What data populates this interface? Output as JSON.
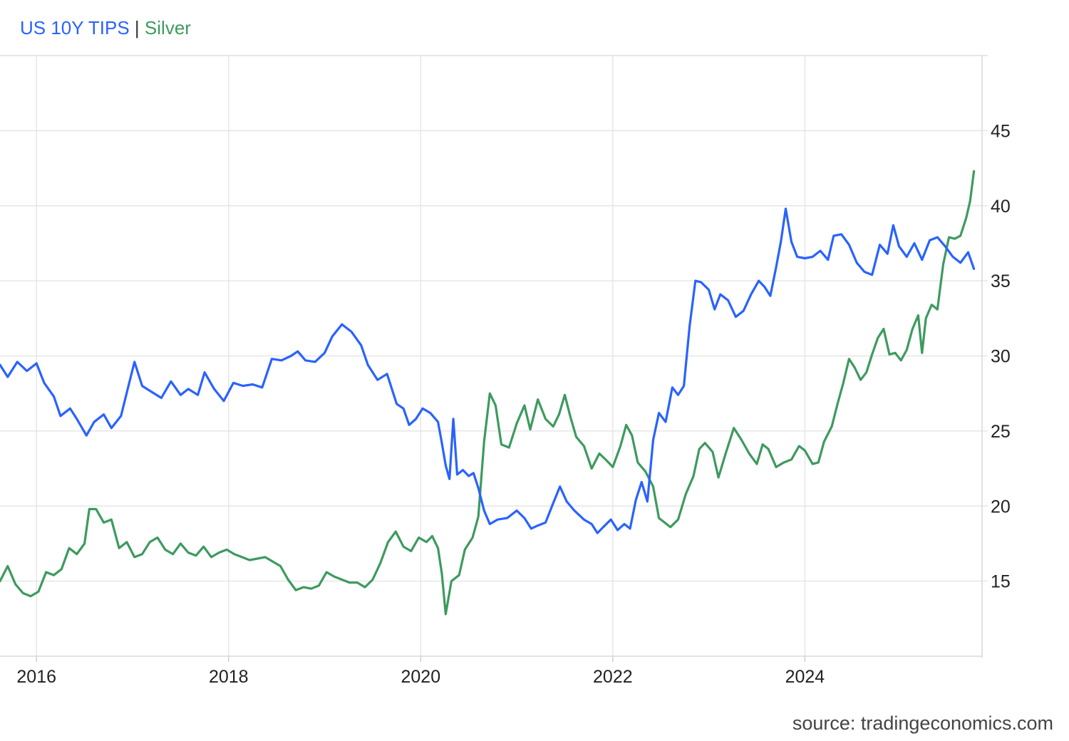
{
  "legend": {
    "tips_label": "US 10Y TIPS",
    "separator": "|",
    "silver_label": "Silver"
  },
  "source": "source: tradingeconomics.com",
  "colors": {
    "tips": "#2962ff",
    "silver": "#3d9a5f",
    "grid": "#e6e6e6"
  },
  "chart_data": {
    "type": "line",
    "title": "",
    "xlabel": "",
    "ylabel": "",
    "x_range": [
      2015.62,
      2025.8
    ],
    "ylim": [
      10,
      50
    ],
    "y_ticks": [
      15,
      20,
      25,
      30,
      35,
      40,
      45
    ],
    "x_ticks": [
      2016,
      2018,
      2020,
      2022,
      2024
    ],
    "x_tick_labels": [
      "2016",
      "2018",
      "2020",
      "2022",
      "2024"
    ],
    "grid": true,
    "y_axis_side": "right",
    "series": [
      {
        "name": "US 10Y TIPS",
        "color": "#2962ff",
        "points": [
          [
            2015.62,
            29.4
          ],
          [
            2015.7,
            28.6
          ],
          [
            2015.8,
            29.6
          ],
          [
            2015.9,
            29.0
          ],
          [
            2016.0,
            29.5
          ],
          [
            2016.08,
            28.2
          ],
          [
            2016.18,
            27.3
          ],
          [
            2016.25,
            26.0
          ],
          [
            2016.35,
            26.5
          ],
          [
            2016.42,
            25.8
          ],
          [
            2016.52,
            24.7
          ],
          [
            2016.6,
            25.6
          ],
          [
            2016.7,
            26.1
          ],
          [
            2016.78,
            25.2
          ],
          [
            2016.88,
            26.0
          ],
          [
            2016.95,
            27.8
          ],
          [
            2017.02,
            29.6
          ],
          [
            2017.1,
            28.0
          ],
          [
            2017.2,
            27.6
          ],
          [
            2017.3,
            27.2
          ],
          [
            2017.4,
            28.3
          ],
          [
            2017.5,
            27.4
          ],
          [
            2017.58,
            27.8
          ],
          [
            2017.68,
            27.4
          ],
          [
            2017.75,
            28.9
          ],
          [
            2017.85,
            27.8
          ],
          [
            2017.95,
            27.0
          ],
          [
            2018.05,
            28.2
          ],
          [
            2018.15,
            28.0
          ],
          [
            2018.25,
            28.1
          ],
          [
            2018.35,
            27.9
          ],
          [
            2018.45,
            29.8
          ],
          [
            2018.55,
            29.7
          ],
          [
            2018.65,
            30.0
          ],
          [
            2018.72,
            30.3
          ],
          [
            2018.8,
            29.7
          ],
          [
            2018.9,
            29.6
          ],
          [
            2019.0,
            30.2
          ],
          [
            2019.08,
            31.3
          ],
          [
            2019.18,
            32.1
          ],
          [
            2019.28,
            31.6
          ],
          [
            2019.38,
            30.7
          ],
          [
            2019.45,
            29.4
          ],
          [
            2019.55,
            28.4
          ],
          [
            2019.65,
            28.8
          ],
          [
            2019.75,
            26.8
          ],
          [
            2019.82,
            26.5
          ],
          [
            2019.88,
            25.4
          ],
          [
            2019.95,
            25.8
          ],
          [
            2020.02,
            26.5
          ],
          [
            2020.1,
            26.2
          ],
          [
            2020.18,
            25.6
          ],
          [
            2020.22,
            24.2
          ],
          [
            2020.26,
            22.7
          ],
          [
            2020.3,
            21.8
          ],
          [
            2020.34,
            25.8
          ],
          [
            2020.38,
            22.1
          ],
          [
            2020.44,
            22.4
          ],
          [
            2020.5,
            22.0
          ],
          [
            2020.55,
            22.2
          ],
          [
            2020.6,
            21.2
          ],
          [
            2020.66,
            19.7
          ],
          [
            2020.72,
            18.8
          ],
          [
            2020.8,
            19.1
          ],
          [
            2020.9,
            19.2
          ],
          [
            2021.0,
            19.7
          ],
          [
            2021.08,
            19.2
          ],
          [
            2021.15,
            18.5
          ],
          [
            2021.22,
            18.7
          ],
          [
            2021.3,
            18.9
          ],
          [
            2021.38,
            20.2
          ],
          [
            2021.45,
            21.3
          ],
          [
            2021.52,
            20.3
          ],
          [
            2021.6,
            19.7
          ],
          [
            2021.7,
            19.1
          ],
          [
            2021.78,
            18.8
          ],
          [
            2021.84,
            18.2
          ],
          [
            2021.9,
            18.6
          ],
          [
            2021.98,
            19.1
          ],
          [
            2022.05,
            18.4
          ],
          [
            2022.12,
            18.8
          ],
          [
            2022.18,
            18.5
          ],
          [
            2022.24,
            20.4
          ],
          [
            2022.3,
            21.6
          ],
          [
            2022.36,
            20.3
          ],
          [
            2022.42,
            24.4
          ],
          [
            2022.48,
            26.2
          ],
          [
            2022.55,
            25.6
          ],
          [
            2022.62,
            27.9
          ],
          [
            2022.68,
            27.4
          ],
          [
            2022.74,
            28.0
          ],
          [
            2022.8,
            32.0
          ],
          [
            2022.86,
            35.0
          ],
          [
            2022.92,
            34.9
          ],
          [
            2023.0,
            34.4
          ],
          [
            2023.06,
            33.1
          ],
          [
            2023.12,
            34.1
          ],
          [
            2023.2,
            33.7
          ],
          [
            2023.28,
            32.6
          ],
          [
            2023.36,
            33.0
          ],
          [
            2023.44,
            34.1
          ],
          [
            2023.52,
            35.0
          ],
          [
            2023.58,
            34.6
          ],
          [
            2023.64,
            34.0
          ],
          [
            2023.7,
            35.9
          ],
          [
            2023.75,
            37.6
          ],
          [
            2023.8,
            39.8
          ],
          [
            2023.86,
            37.6
          ],
          [
            2023.92,
            36.6
          ],
          [
            2024.0,
            36.5
          ],
          [
            2024.08,
            36.6
          ],
          [
            2024.16,
            37.0
          ],
          [
            2024.24,
            36.4
          ],
          [
            2024.3,
            38.0
          ],
          [
            2024.38,
            38.1
          ],
          [
            2024.46,
            37.4
          ],
          [
            2024.54,
            36.2
          ],
          [
            2024.62,
            35.6
          ],
          [
            2024.7,
            35.4
          ],
          [
            2024.78,
            37.4
          ],
          [
            2024.86,
            36.8
          ],
          [
            2024.92,
            38.7
          ],
          [
            2024.98,
            37.3
          ],
          [
            2025.06,
            36.6
          ],
          [
            2025.14,
            37.5
          ],
          [
            2025.22,
            36.4
          ],
          [
            2025.3,
            37.7
          ],
          [
            2025.38,
            37.9
          ],
          [
            2025.46,
            37.3
          ],
          [
            2025.54,
            36.6
          ],
          [
            2025.62,
            36.2
          ],
          [
            2025.7,
            36.9
          ],
          [
            2025.76,
            35.8
          ]
        ]
      },
      {
        "name": "Silver",
        "color": "#3d9a5f",
        "points": [
          [
            2015.62,
            15.0
          ],
          [
            2015.7,
            16.0
          ],
          [
            2015.78,
            14.8
          ],
          [
            2015.86,
            14.2
          ],
          [
            2015.94,
            14.0
          ],
          [
            2016.02,
            14.3
          ],
          [
            2016.1,
            15.6
          ],
          [
            2016.18,
            15.4
          ],
          [
            2016.26,
            15.8
          ],
          [
            2016.34,
            17.2
          ],
          [
            2016.42,
            16.8
          ],
          [
            2016.5,
            17.5
          ],
          [
            2016.55,
            19.8
          ],
          [
            2016.62,
            19.8
          ],
          [
            2016.7,
            18.9
          ],
          [
            2016.78,
            19.1
          ],
          [
            2016.86,
            17.2
          ],
          [
            2016.94,
            17.6
          ],
          [
            2017.02,
            16.6
          ],
          [
            2017.1,
            16.8
          ],
          [
            2017.18,
            17.6
          ],
          [
            2017.26,
            17.9
          ],
          [
            2017.34,
            17.1
          ],
          [
            2017.42,
            16.8
          ],
          [
            2017.5,
            17.5
          ],
          [
            2017.58,
            16.9
          ],
          [
            2017.66,
            16.7
          ],
          [
            2017.74,
            17.3
          ],
          [
            2017.82,
            16.6
          ],
          [
            2017.9,
            16.9
          ],
          [
            2017.98,
            17.1
          ],
          [
            2018.06,
            16.8
          ],
          [
            2018.14,
            16.6
          ],
          [
            2018.22,
            16.4
          ],
          [
            2018.3,
            16.5
          ],
          [
            2018.38,
            16.6
          ],
          [
            2018.46,
            16.3
          ],
          [
            2018.54,
            16.0
          ],
          [
            2018.62,
            15.1
          ],
          [
            2018.7,
            14.4
          ],
          [
            2018.78,
            14.6
          ],
          [
            2018.86,
            14.5
          ],
          [
            2018.94,
            14.7
          ],
          [
            2019.02,
            15.6
          ],
          [
            2019.1,
            15.3
          ],
          [
            2019.18,
            15.1
          ],
          [
            2019.26,
            14.9
          ],
          [
            2019.34,
            14.9
          ],
          [
            2019.42,
            14.6
          ],
          [
            2019.5,
            15.1
          ],
          [
            2019.58,
            16.2
          ],
          [
            2019.66,
            17.6
          ],
          [
            2019.74,
            18.3
          ],
          [
            2019.82,
            17.3
          ],
          [
            2019.9,
            17.0
          ],
          [
            2019.98,
            17.9
          ],
          [
            2020.06,
            17.6
          ],
          [
            2020.12,
            18.0
          ],
          [
            2020.18,
            17.2
          ],
          [
            2020.22,
            15.5
          ],
          [
            2020.26,
            12.8
          ],
          [
            2020.32,
            15.0
          ],
          [
            2020.4,
            15.4
          ],
          [
            2020.46,
            17.1
          ],
          [
            2020.54,
            17.9
          ],
          [
            2020.6,
            19.3
          ],
          [
            2020.66,
            24.3
          ],
          [
            2020.72,
            27.5
          ],
          [
            2020.78,
            26.7
          ],
          [
            2020.84,
            24.1
          ],
          [
            2020.92,
            23.9
          ],
          [
            2021.0,
            25.5
          ],
          [
            2021.08,
            26.7
          ],
          [
            2021.14,
            25.1
          ],
          [
            2021.22,
            27.1
          ],
          [
            2021.3,
            25.8
          ],
          [
            2021.38,
            25.3
          ],
          [
            2021.44,
            26.1
          ],
          [
            2021.5,
            27.4
          ],
          [
            2021.56,
            25.9
          ],
          [
            2021.62,
            24.6
          ],
          [
            2021.7,
            24.0
          ],
          [
            2021.78,
            22.5
          ],
          [
            2021.86,
            23.5
          ],
          [
            2021.94,
            23.0
          ],
          [
            2022.0,
            22.6
          ],
          [
            2022.08,
            24.0
          ],
          [
            2022.14,
            25.4
          ],
          [
            2022.2,
            24.7
          ],
          [
            2022.26,
            22.9
          ],
          [
            2022.34,
            22.3
          ],
          [
            2022.42,
            21.3
          ],
          [
            2022.48,
            19.2
          ],
          [
            2022.54,
            18.9
          ],
          [
            2022.6,
            18.6
          ],
          [
            2022.68,
            19.1
          ],
          [
            2022.76,
            20.8
          ],
          [
            2022.84,
            22.0
          ],
          [
            2022.9,
            23.8
          ],
          [
            2022.96,
            24.2
          ],
          [
            2023.04,
            23.6
          ],
          [
            2023.1,
            21.9
          ],
          [
            2023.18,
            23.6
          ],
          [
            2023.26,
            25.2
          ],
          [
            2023.34,
            24.4
          ],
          [
            2023.42,
            23.5
          ],
          [
            2023.5,
            22.8
          ],
          [
            2023.56,
            24.1
          ],
          [
            2023.62,
            23.8
          ],
          [
            2023.7,
            22.6
          ],
          [
            2023.78,
            22.9
          ],
          [
            2023.86,
            23.1
          ],
          [
            2023.94,
            24.0
          ],
          [
            2024.0,
            23.7
          ],
          [
            2024.08,
            22.8
          ],
          [
            2024.14,
            22.9
          ],
          [
            2024.2,
            24.3
          ],
          [
            2024.28,
            25.3
          ],
          [
            2024.34,
            26.8
          ],
          [
            2024.4,
            28.2
          ],
          [
            2024.46,
            29.8
          ],
          [
            2024.52,
            29.2
          ],
          [
            2024.58,
            28.4
          ],
          [
            2024.64,
            28.9
          ],
          [
            2024.7,
            30.1
          ],
          [
            2024.76,
            31.2
          ],
          [
            2024.82,
            31.8
          ],
          [
            2024.88,
            30.1
          ],
          [
            2024.94,
            30.2
          ],
          [
            2025.0,
            29.7
          ],
          [
            2025.06,
            30.4
          ],
          [
            2025.12,
            31.8
          ],
          [
            2025.18,
            32.7
          ],
          [
            2025.22,
            30.2
          ],
          [
            2025.26,
            32.5
          ],
          [
            2025.32,
            33.4
          ],
          [
            2025.38,
            33.1
          ],
          [
            2025.44,
            36.1
          ],
          [
            2025.5,
            37.9
          ],
          [
            2025.56,
            37.8
          ],
          [
            2025.62,
            38.0
          ],
          [
            2025.68,
            39.2
          ],
          [
            2025.72,
            40.3
          ],
          [
            2025.76,
            42.3
          ]
        ]
      }
    ]
  }
}
